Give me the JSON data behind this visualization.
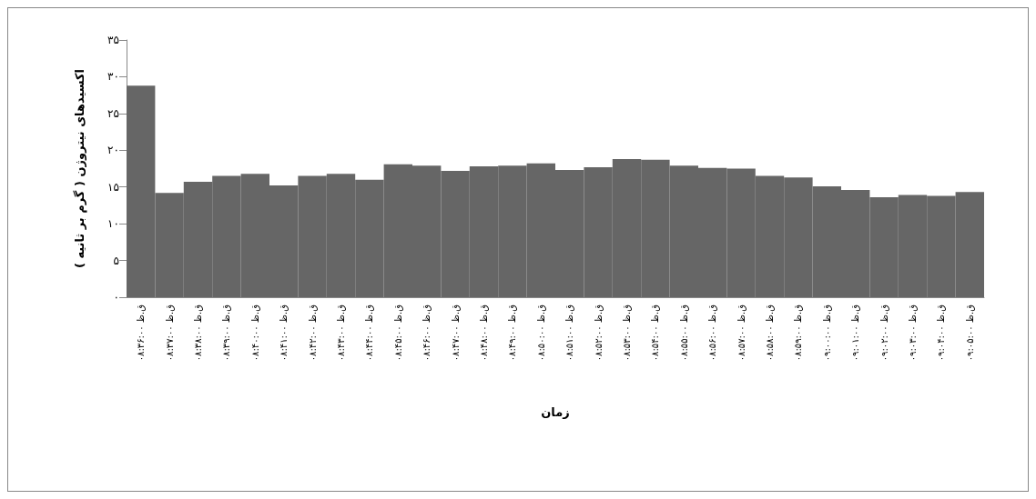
{
  "chart_data": {
    "type": "bar",
    "xlabel": "زمان",
    "ylabel": "اکسیدهای نیتروژن ( گرم بر ثانیه )",
    "categories": [
      "۰۸:۳۶:۰۰ ق.ظ",
      "۰۸:۳۷:۰۰ ق.ظ",
      "۰۸:۳۸:۰۰ ق.ظ",
      "۰۸:۳۹:۰۰ ق.ظ",
      "۰۸:۴۰:۰۰ ق.ظ",
      "۰۸:۴۱:۰۰ ق.ظ",
      "۰۸:۴۲:۰۰ ق.ظ",
      "۰۸:۴۳:۰۰ ق.ظ",
      "۰۸:۴۴:۰۰ ق.ظ",
      "۰۸:۴۵:۰۰ ق.ظ",
      "۰۸:۴۶:۰۰ ق.ظ",
      "۰۸:۴۷:۰۰ ق.ظ",
      "۰۸:۴۸:۰۰ ق.ظ",
      "۰۸:۴۹:۰۰ ق.ظ",
      "۰۸:۵۰:۰۰ ق.ظ",
      "۰۸:۵۱:۰۰ ق.ظ",
      "۰۸:۵۲:۰۰ ق.ظ",
      "۰۸:۵۳:۰۰ ق.ظ",
      "۰۸:۵۴:۰۰ ق.ظ",
      "۰۸:۵۵:۰۰ ق.ظ",
      "۰۸:۵۶:۰۰ ق.ظ",
      "۰۸:۵۷:۰۰ ق.ظ",
      "۰۸:۵۸:۰۰ ق.ظ",
      "۰۸:۵۹:۰۰ ق.ظ",
      "۰۹:۰۰:۰۰ ق.ظ",
      "۰۹:۰۱:۰۰ ق.ظ",
      "۰۹:۰۲:۰۰ ق.ظ",
      "۰۹:۰۳:۰۰ ق.ظ",
      "۰۹:۰۴:۰۰ ق.ظ",
      "۰۹:۰۵:۰۰ ق.ظ"
    ],
    "values": [
      28.8,
      14.2,
      15.7,
      16.5,
      16.8,
      15.2,
      16.5,
      16.8,
      16.0,
      18.1,
      17.9,
      17.2,
      17.8,
      17.9,
      18.2,
      17.3,
      17.7,
      18.8,
      18.7,
      17.9,
      17.6,
      17.5,
      16.5,
      16.3,
      15.1,
      14.6,
      13.6,
      13.9,
      13.8,
      14.3
    ],
    "color": "#666666",
    "ylim": [
      0,
      35
    ],
    "yticks": [
      {
        "value": 0,
        "label": "۰"
      },
      {
        "value": 5,
        "label": "۵"
      },
      {
        "value": 10,
        "label": "۱۰"
      },
      {
        "value": 15,
        "label": "۱۵"
      },
      {
        "value": 20,
        "label": "۲۰"
      },
      {
        "value": 25,
        "label": "۲۵"
      },
      {
        "value": 30,
        "label": "۳۰"
      },
      {
        "value": 35,
        "label": "۳۵"
      }
    ]
  }
}
